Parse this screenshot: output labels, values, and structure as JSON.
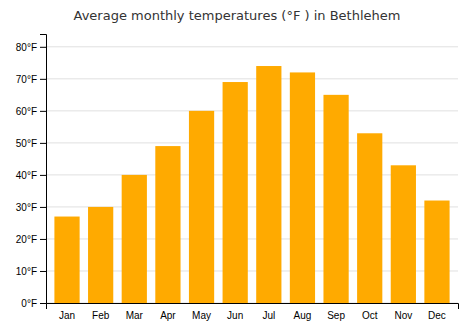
{
  "chart_data": {
    "type": "bar",
    "title": "Average monthly temperatures (°F ) in Bethlehem",
    "categories": [
      "Jan",
      "Feb",
      "Mar",
      "Apr",
      "May",
      "Jun",
      "Jul",
      "Aug",
      "Sep",
      "Oct",
      "Nov",
      "Dec"
    ],
    "values": [
      27,
      30,
      40,
      49,
      60,
      69,
      74,
      72,
      65,
      53,
      43,
      32
    ],
    "color": "#FFAA00",
    "ylim": [
      0,
      84
    ],
    "yticks": [
      {
        "value": 0,
        "label": "0°F"
      },
      {
        "value": 10,
        "label": "10°F"
      },
      {
        "value": 20,
        "label": "20°F"
      },
      {
        "value": 30,
        "label": "30°F"
      },
      {
        "value": 40,
        "label": "40°F"
      },
      {
        "value": 50,
        "label": "50°F"
      },
      {
        "value": 60,
        "label": "60°F"
      },
      {
        "value": 70,
        "label": "70°F"
      },
      {
        "value": 80,
        "label": "80°F"
      }
    ],
    "grid": true
  }
}
